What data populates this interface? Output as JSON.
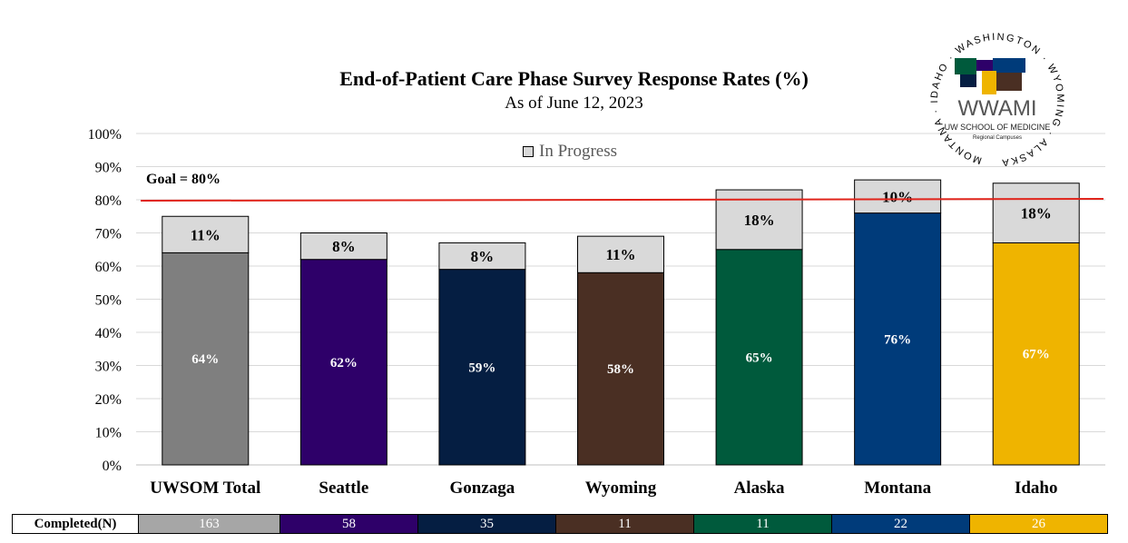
{
  "title": "End-of-Patient Care Phase Survey Response Rates (%)",
  "subtitle": "As of June 12, 2023",
  "legend_label": "In Progress",
  "goal_label": "Goal = 80%",
  "table_header": "Completed(N)",
  "logo": {
    "name": "WWAMI",
    "school": "UW SCHOOL OF MEDICINE",
    "tagline": "Regional Campuses",
    "ring_text": [
      "WASHINGTON",
      "WYOMING",
      "ALASKA",
      "MONTANA",
      "IDAHO"
    ]
  },
  "chart_data": {
    "type": "bar",
    "stacked": true,
    "categories": [
      "UWSOM Total",
      "Seattle",
      "Gonzaga",
      "Wyoming",
      "Alaska",
      "Montana",
      "Idaho"
    ],
    "series": [
      {
        "name": "",
        "values": [
          64,
          62,
          59,
          58,
          65,
          76,
          67
        ],
        "labels": [
          "64%",
          "62%",
          "59%",
          "58%",
          "65%",
          "76%",
          "67%"
        ]
      },
      {
        "name": "In Progress",
        "values": [
          11,
          8,
          8,
          11,
          18,
          10,
          18
        ],
        "labels": [
          "11%",
          "8%",
          "8%",
          "11%",
          "18%",
          "10%",
          "18%"
        ]
      }
    ],
    "bar_colors": [
      "#7f7f7f",
      "#2e0069",
      "#051e42",
      "#4a2f23",
      "#005a3c",
      "#003b7a",
      "#efb400"
    ],
    "in_progress_color": "#d9d9d9",
    "goal": 80,
    "goal_color": "#e0241b",
    "ylim": [
      0,
      100
    ],
    "yticks": [
      "0%",
      "10%",
      "20%",
      "30%",
      "40%",
      "50%",
      "60%",
      "70%",
      "80%",
      "90%",
      "100%"
    ],
    "grid": true,
    "completed_n": [
      "163",
      "58",
      "35",
      "11",
      "11",
      "22",
      "26"
    ]
  }
}
